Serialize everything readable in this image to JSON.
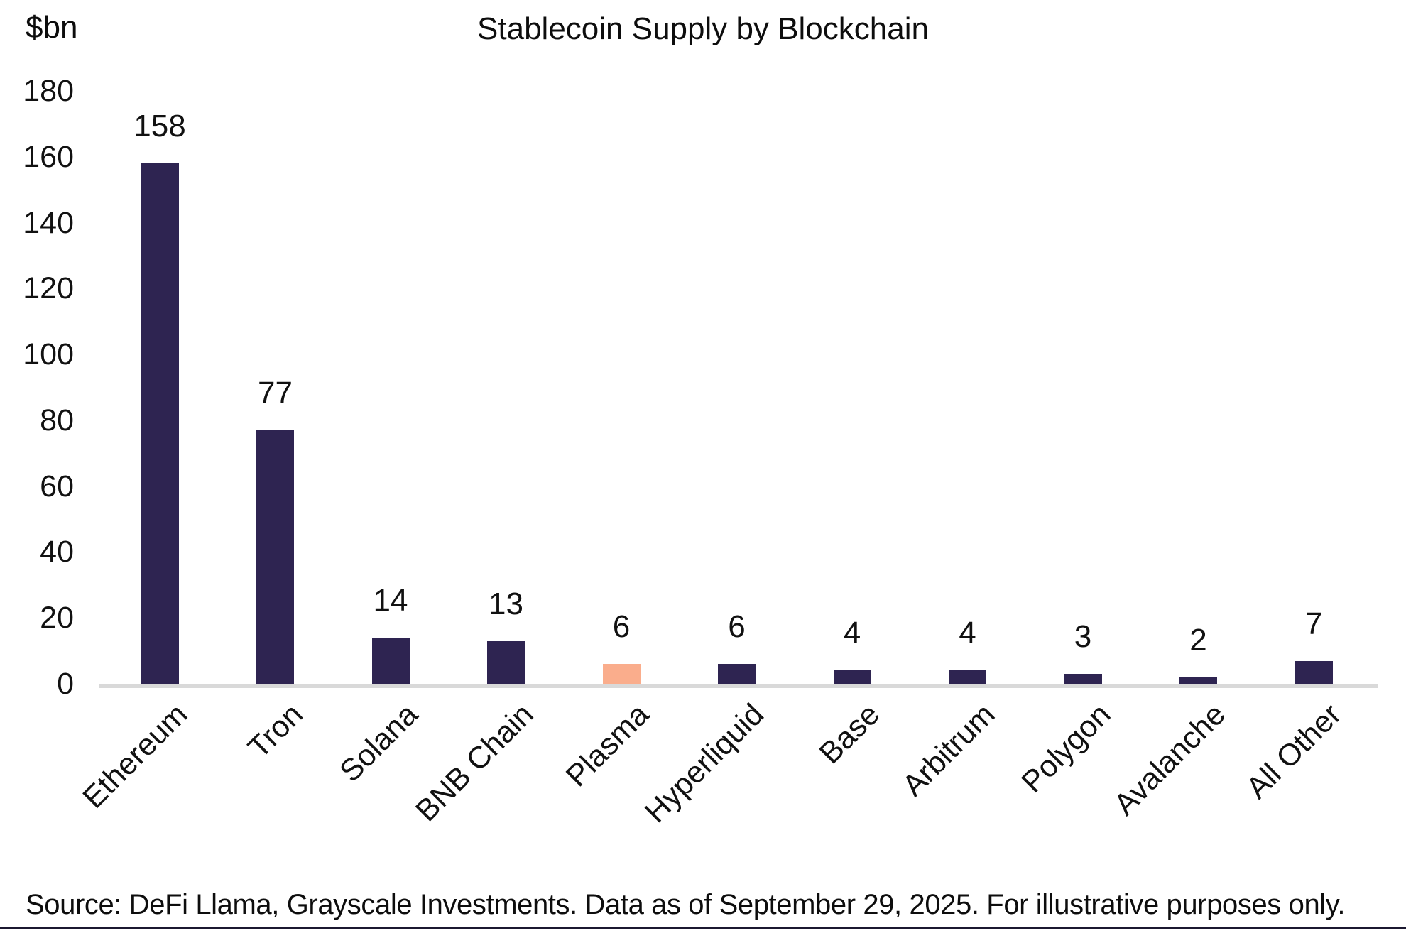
{
  "chart_data": {
    "type": "bar",
    "title": "Stablecoin Supply by Blockchain",
    "unit_label": "$bn",
    "categories": [
      "Ethereum",
      "Tron",
      "Solana",
      "BNB Chain",
      "Plasma",
      "Hyperliquid",
      "Base",
      "Arbitrum",
      "Polygon",
      "Avalanche",
      "All Other"
    ],
    "values": [
      158,
      77,
      14,
      13,
      6,
      6,
      4,
      4,
      3,
      2,
      7
    ],
    "highlighted_category": "Plasma",
    "yticks": [
      0,
      20,
      40,
      60,
      80,
      100,
      120,
      140,
      160,
      180
    ],
    "ylim": [
      0,
      180
    ],
    "xlabel": "",
    "ylabel": "$bn",
    "grid": false,
    "legend": "none",
    "data_labels": true,
    "bar_color": "#2e2451",
    "highlight_color": "#faad8c",
    "axis_line_color": "#d9d9d9"
  },
  "footer": {
    "source_text": "Source: DeFi Llama, Grayscale Investments. Data as of September 29, 2025. For illustrative purposes only.",
    "rule_color": "#1b1830"
  }
}
